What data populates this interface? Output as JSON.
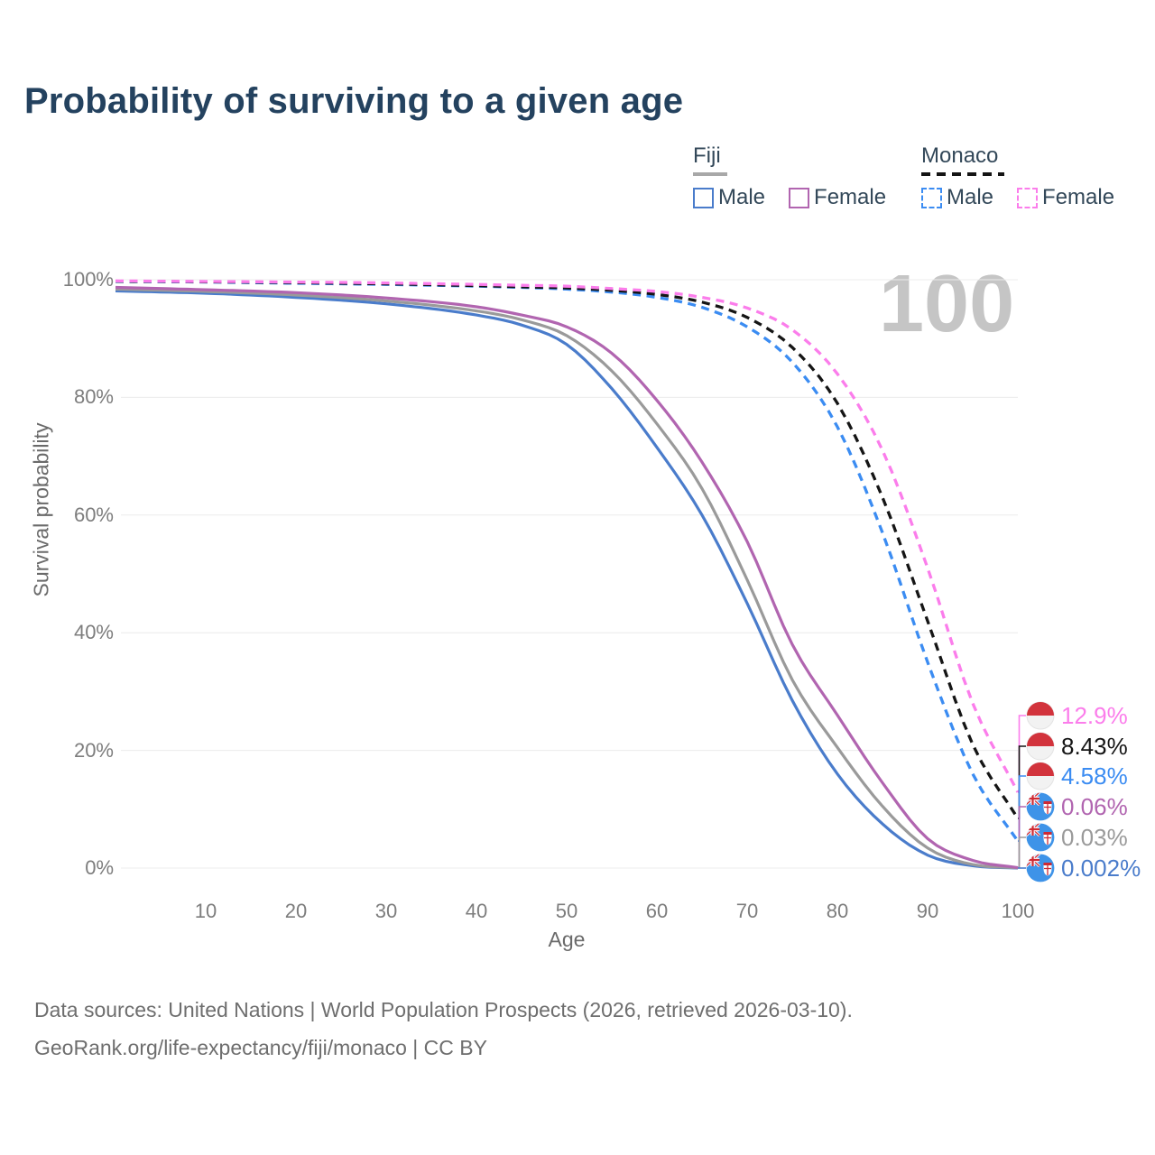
{
  "page": {
    "title": "Probability of surviving to a given age",
    "watermark_age": "100"
  },
  "legend": {
    "groups": [
      {
        "label": "Fiji",
        "line_style": "solid",
        "line_color": "#A8A8A8",
        "items": [
          {
            "label": "Male",
            "color": "#4A7CCB",
            "style": "solid"
          },
          {
            "label": "Female",
            "color": "#B165B0",
            "style": "solid"
          }
        ]
      },
      {
        "label": "Monaco",
        "line_style": "dashed",
        "line_color": "#141414",
        "items": [
          {
            "label": "Male",
            "color": "#3B8CF2",
            "style": "dashed"
          },
          {
            "label": "Female",
            "color": "#FB7DEB",
            "style": "dashed"
          }
        ]
      }
    ]
  },
  "footer": {
    "line1": "Data sources: United Nations | World Population Prospects (2026, retrieved 2026-03-10).",
    "line2": "GeoRank.org/life-expectancy/fiji/monaco | CC BY"
  },
  "chart_data": {
    "type": "line",
    "title": "Probability of surviving to a given age",
    "xlabel": "Age",
    "ylabel": "Survival probability",
    "xlim": [
      0,
      100
    ],
    "ylim_pct": [
      0,
      100
    ],
    "x_ticks": [
      10,
      20,
      30,
      40,
      50,
      60,
      70,
      80,
      90,
      100
    ],
    "y_ticks_pct": [
      0,
      20,
      40,
      60,
      80,
      100
    ],
    "grid": "horizontal",
    "hover_age_indicator": "100",
    "ages": [
      0,
      10,
      20,
      30,
      40,
      45,
      50,
      55,
      60,
      65,
      70,
      75,
      80,
      85,
      90,
      95,
      100
    ],
    "series": [
      {
        "name": "Fiji Male",
        "country": "Fiji",
        "sex": "Male",
        "style": "solid",
        "color": "#4A7CCB",
        "values_pct": [
          98.1,
          97.7,
          97.0,
          95.9,
          94.0,
          92.3,
          89.0,
          81.5,
          71.5,
          60.0,
          45.0,
          28.5,
          16.0,
          7.5,
          2.2,
          0.4,
          0.002
        ],
        "survival_at_100": "0.002%"
      },
      {
        "name": "Fiji Both sexes",
        "country": "Fiji",
        "sex": "Both",
        "style": "solid",
        "color": "#9A9A9A",
        "values_pct": [
          98.4,
          98.0,
          97.4,
          96.4,
          94.7,
          93.2,
          90.5,
          84.5,
          75.5,
          64.5,
          49.0,
          32.0,
          20.5,
          10.5,
          3.4,
          0.6,
          0.03
        ],
        "survival_at_100": "0.03%"
      },
      {
        "name": "Fiji Female",
        "country": "Fiji",
        "sex": "Female",
        "style": "solid",
        "color": "#B165B0",
        "values_pct": [
          98.7,
          98.3,
          97.8,
          96.9,
          95.4,
          94.0,
          92.0,
          87.5,
          79.5,
          69.0,
          55.5,
          38.0,
          26.0,
          14.5,
          5.0,
          1.3,
          0.06
        ],
        "survival_at_100": "0.06%"
      },
      {
        "name": "Monaco Male",
        "country": "Monaco",
        "sex": "Male",
        "style": "dashed",
        "color": "#3B8CF2",
        "values_pct": [
          99.7,
          99.6,
          99.4,
          99.2,
          98.9,
          98.7,
          98.4,
          97.9,
          97.0,
          95.3,
          92.0,
          86.0,
          75.0,
          57.0,
          35.0,
          16.0,
          4.58
        ],
        "survival_at_100": "4.58%"
      },
      {
        "name": "Monaco Both sexes",
        "country": "Monaco",
        "sex": "Both",
        "style": "dashed",
        "color": "#151515",
        "values_pct": [
          99.75,
          99.65,
          99.5,
          99.3,
          99.0,
          98.8,
          98.6,
          98.2,
          97.5,
          96.2,
          93.6,
          88.5,
          79.0,
          63.0,
          42.0,
          21.0,
          8.43
        ],
        "survival_at_100": "8.43%"
      },
      {
        "name": "Monaco Female",
        "country": "Monaco",
        "sex": "Female",
        "style": "dashed",
        "color": "#FB7DEB",
        "values_pct": [
          99.8,
          99.7,
          99.6,
          99.45,
          99.2,
          99.05,
          98.9,
          98.5,
          98.0,
          97.0,
          95.2,
          91.5,
          84.0,
          71.0,
          51.0,
          28.0,
          12.9
        ],
        "survival_at_100": "12.9%"
      }
    ],
    "end_labels": [
      {
        "text": "12.9%",
        "color": "#FB7DEB",
        "flag": "monaco",
        "value_pct": 12.9
      },
      {
        "text": "8.43%",
        "color": "#151515",
        "flag": "monaco",
        "value_pct": 8.43
      },
      {
        "text": "4.58%",
        "color": "#3B8CF2",
        "flag": "monaco",
        "value_pct": 4.58
      },
      {
        "text": "0.06%",
        "color": "#B165B0",
        "flag": "fiji",
        "value_pct": 0.06
      },
      {
        "text": "0.03%",
        "color": "#9A9A9A",
        "flag": "fiji",
        "value_pct": 0.03
      },
      {
        "text": "0.002%",
        "color": "#4A7CCB",
        "flag": "fiji",
        "value_pct": 0.002
      }
    ],
    "flag_colors": {
      "monaco_red": "#D2333C",
      "monaco_white": "#F2F2F2",
      "fiji_blue": "#3E93E8",
      "fiji_red": "#CF2A33"
    },
    "gridline_color": "#ECECEC"
  }
}
